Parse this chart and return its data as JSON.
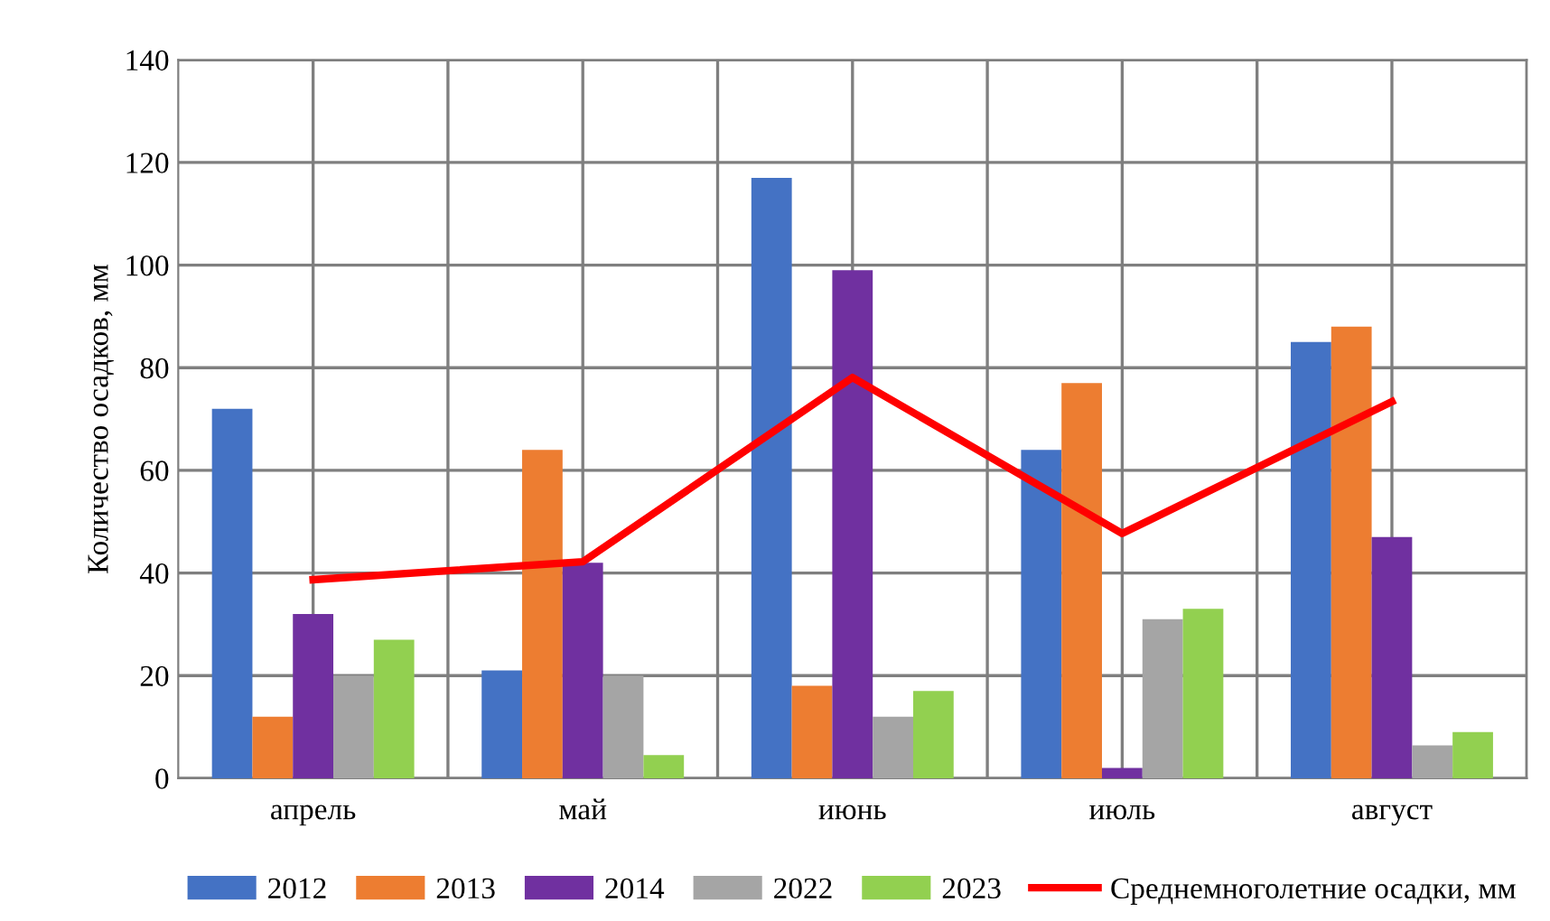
{
  "chart_data": {
    "type": "bar",
    "ylabel": "Количество осадков, мм",
    "categories": [
      "апрель",
      "май",
      "июнь",
      "июль",
      "август"
    ],
    "series": [
      {
        "name": "2012",
        "color": "#4472c4",
        "values": [
          72,
          21,
          117,
          64,
          85
        ]
      },
      {
        "name": "2013",
        "color": "#ed7d31",
        "values": [
          12,
          64,
          18,
          77,
          88
        ]
      },
      {
        "name": "2014",
        "color": "#7030a0",
        "values": [
          32,
          42,
          99,
          2,
          47
        ]
      },
      {
        "name": "2022",
        "color": "#a5a5a5",
        "values": [
          20,
          20,
          12,
          31,
          6.4
        ]
      },
      {
        "name": "2023",
        "color": "#92d050",
        "values": [
          27,
          4.5,
          17,
          33,
          9
        ]
      },
      {
        "name": "Среднемноголетние осадки, мм",
        "type": "line",
        "color": "#ff0000",
        "values": [
          38.7,
          42.2,
          78.1,
          47.7,
          73.4
        ]
      }
    ],
    "ylim": [
      0,
      140
    ],
    "yticks": [
      0,
      20,
      40,
      60,
      80,
      100,
      120,
      140
    ],
    "grid": true,
    "legend": "bottom",
    "marker": "none"
  }
}
